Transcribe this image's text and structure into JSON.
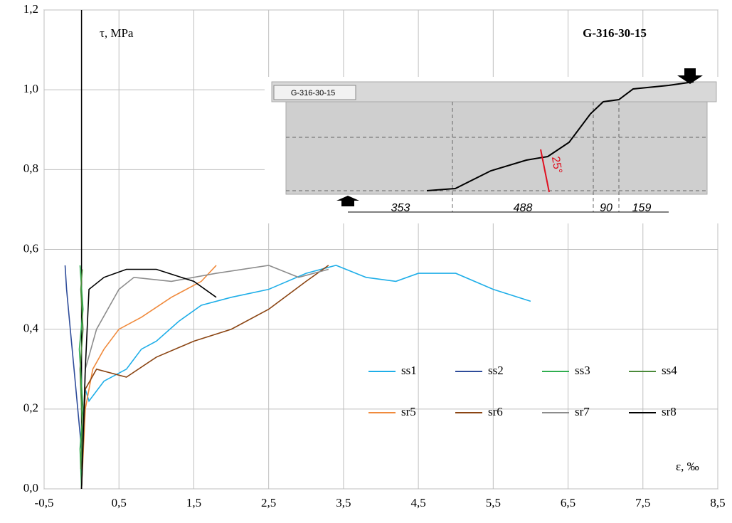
{
  "chart_data": {
    "type": "line",
    "title": "G-316-30-15",
    "ylabel": "τ, MPa",
    "xlabel": "ε, ‰",
    "xlim": [
      -0.5,
      8.5
    ],
    "ylim": [
      0,
      1.2
    ],
    "xticks": [
      {
        "value": -0.5,
        "label": "-0,5"
      },
      {
        "value": 0.5,
        "label": "0,5"
      },
      {
        "value": 1.5,
        "label": "1,5"
      },
      {
        "value": 2.5,
        "label": "2,5"
      },
      {
        "value": 3.5,
        "label": "3,5"
      },
      {
        "value": 4.5,
        "label": "4,5"
      },
      {
        "value": 5.5,
        "label": "5,5"
      },
      {
        "value": 6.5,
        "label": "6,5"
      },
      {
        "value": 7.5,
        "label": "7,5"
      },
      {
        "value": 8.5,
        "label": "8,5"
      }
    ],
    "yticks": [
      {
        "value": 0,
        "label": "0,0"
      },
      {
        "value": 0.2,
        "label": "0,2"
      },
      {
        "value": 0.4,
        "label": "0,4"
      },
      {
        "value": 0.6,
        "label": "0,6"
      },
      {
        "value": 0.8,
        "label": "0,8"
      },
      {
        "value": 1.0,
        "label": "1,0"
      },
      {
        "value": 1.2,
        "label": "1,2"
      }
    ],
    "grid": true,
    "series": [
      {
        "name": "ss1",
        "color": "#1eaee8",
        "x": [
          0,
          0.05,
          0.1,
          0.3,
          0.6,
          0.8,
          1.0,
          1.3,
          1.6,
          2.0,
          2.5,
          3.0,
          3.4,
          3.8,
          4.2,
          4.5,
          5.0,
          5.5,
          6.0
        ],
        "values": [
          0,
          0.25,
          0.22,
          0.27,
          0.3,
          0.35,
          0.37,
          0.42,
          0.46,
          0.48,
          0.5,
          0.54,
          0.56,
          0.53,
          0.52,
          0.54,
          0.54,
          0.5,
          0.47
        ]
      },
      {
        "name": "ss2",
        "color": "#2e4c9a",
        "x": [
          0,
          -0.05,
          -0.1,
          -0.15,
          -0.2,
          -0.22
        ],
        "values": [
          0.1,
          0.2,
          0.3,
          0.4,
          0.5,
          0.56
        ]
      },
      {
        "name": "ss3",
        "color": "#2fae4f",
        "x": [
          0,
          -0.02,
          0.02,
          -0.03,
          0.02,
          -0.02
        ],
        "values": [
          0,
          0.1,
          0.2,
          0.35,
          0.45,
          0.56
        ]
      },
      {
        "name": "ss4",
        "color": "#4b8a3a",
        "x": [
          -0.01,
          0.01,
          -0.02,
          0.02,
          -0.01,
          0.01
        ],
        "values": [
          0.05,
          0.15,
          0.3,
          0.4,
          0.5,
          0.55
        ]
      },
      {
        "name": "sr5",
        "color": "#f08a3c",
        "x": [
          0,
          0.05,
          0.15,
          0.3,
          0.5,
          0.8,
          1.2,
          1.6,
          1.8
        ],
        "values": [
          0,
          0.2,
          0.3,
          0.35,
          0.4,
          0.43,
          0.48,
          0.52,
          0.56
        ]
      },
      {
        "name": "sr6",
        "color": "#8b4513",
        "x": [
          0,
          0.05,
          0.2,
          0.6,
          1.0,
          1.5,
          2.0,
          2.5,
          3.0,
          3.3
        ],
        "values": [
          0,
          0.25,
          0.3,
          0.28,
          0.33,
          0.37,
          0.4,
          0.45,
          0.52,
          0.56
        ]
      },
      {
        "name": "sr7",
        "color": "#8c8c8c",
        "x": [
          0,
          0.05,
          0.2,
          0.5,
          0.7,
          1.2,
          1.8,
          2.5,
          2.9,
          3.3
        ],
        "values": [
          0,
          0.3,
          0.4,
          0.5,
          0.53,
          0.52,
          0.54,
          0.56,
          0.53,
          0.55
        ]
      },
      {
        "name": "sr8",
        "color": "#000000",
        "x": [
          0,
          0.05,
          0.1,
          0.3,
          0.6,
          1.0,
          1.5,
          1.8
        ],
        "values": [
          0,
          0.3,
          0.5,
          0.53,
          0.55,
          0.55,
          0.52,
          0.48
        ]
      }
    ],
    "inset": {
      "specimen": "G-316-30-15",
      "angle": "25°",
      "dimensions": [
        "353",
        "488",
        "90",
        "159"
      ]
    }
  }
}
